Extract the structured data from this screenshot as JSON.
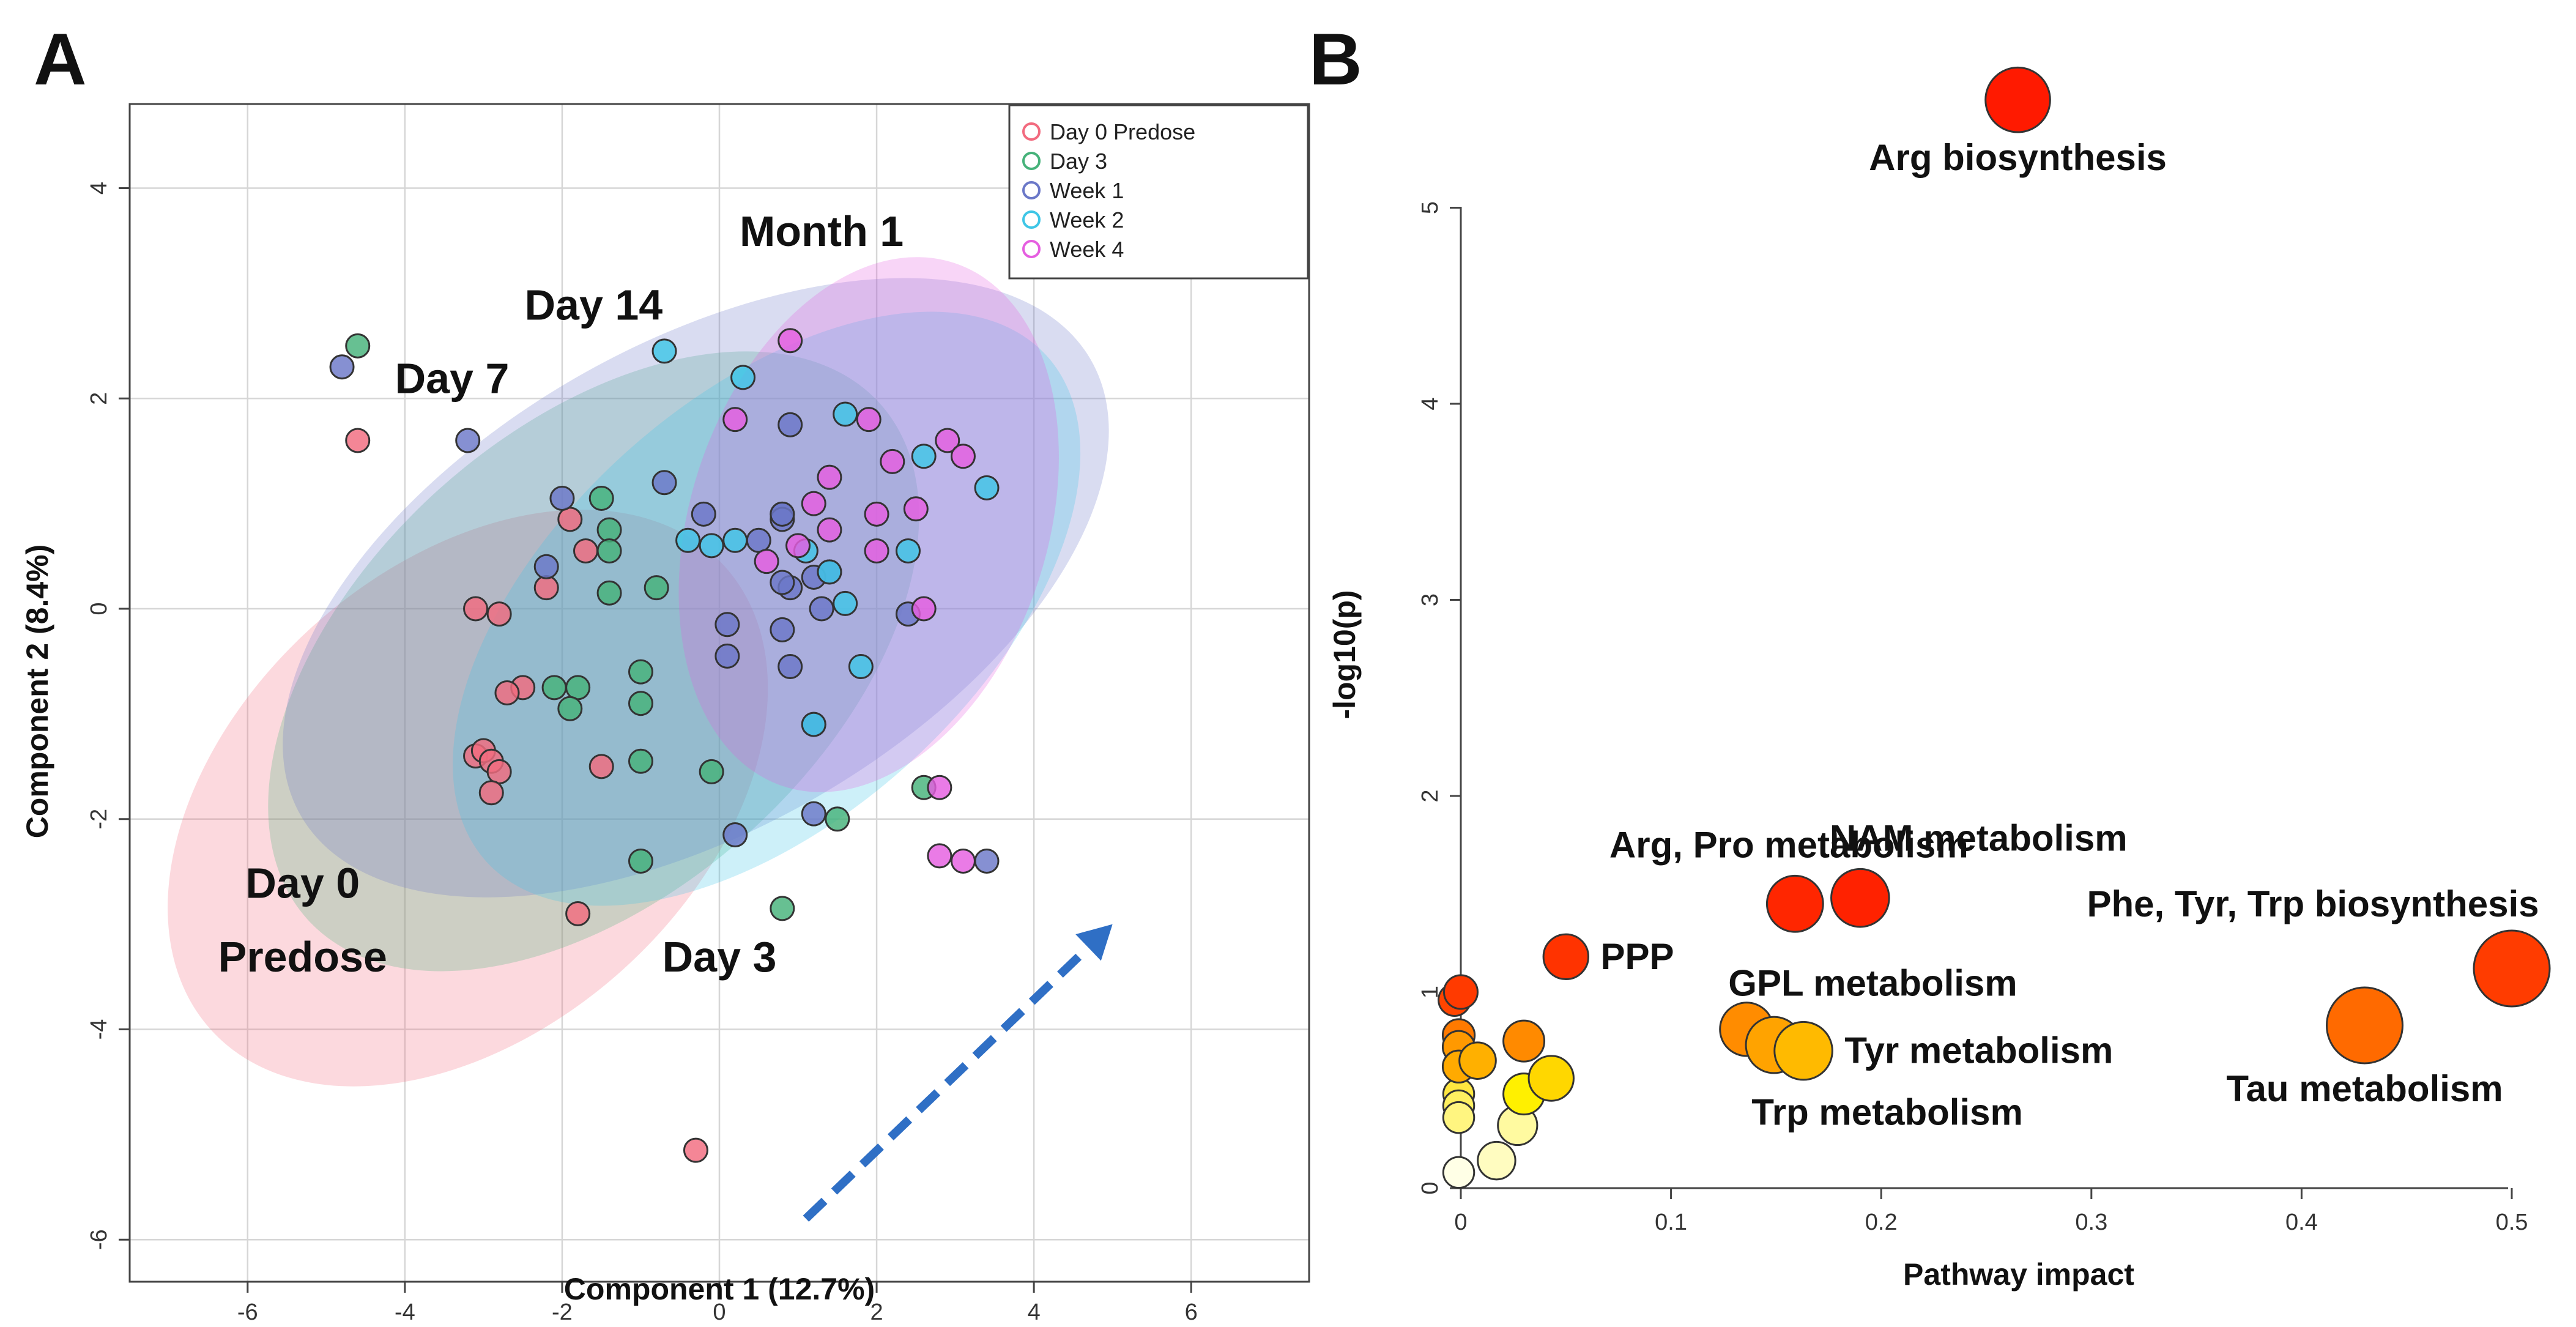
{
  "colors": {
    "day0": "#f26b7f",
    "day3": "#46b27a",
    "week1": "#6b78c8",
    "week2": "#3fc6e6",
    "week4": "#e55ee0",
    "arrow": "#2f6fc5"
  },
  "chart_data": [
    {
      "type": "scatter",
      "panel_letter": "A",
      "title": "",
      "xlabel": "Component 1 (12.7%)",
      "ylabel": "Component 2 (8.4%)",
      "xlim": [
        -7.5,
        7.5
      ],
      "ylim": [
        -6.4,
        4.8
      ],
      "x_ticks": [
        -6,
        -4,
        -2,
        0,
        2,
        4,
        6
      ],
      "y_ticks": [
        -6,
        -4,
        -2,
        0,
        2,
        4
      ],
      "x_tick_labels": [
        "-6",
        "-4",
        "-2",
        "0",
        "2",
        "4",
        "6"
      ],
      "y_tick_labels": [
        "-6",
        "-4",
        "-2",
        "0",
        "2",
        "4"
      ],
      "grid": true,
      "legend_position": "top-right",
      "legend": [
        "Day 0 Predose",
        "Day 3",
        "Week 1",
        "Week 2",
        "Week 4"
      ],
      "group_labels": [
        {
          "text": "Month 1",
          "x": 1.3,
          "y": 3.45
        },
        {
          "text": "Day 14",
          "x": -1.6,
          "y": 2.75
        },
        {
          "text": "Day 7",
          "x": -3.4,
          "y": 2.05
        },
        {
          "text": "Day 0",
          "x": -5.3,
          "y": -2.75
        },
        {
          "text": "Predose",
          "x": -5.3,
          "y": -3.45
        },
        {
          "text": "Day 3",
          "x": 0.0,
          "y": -3.45
        }
      ],
      "arrow": {
        "from": [
          1.1,
          -5.8
        ],
        "to": [
          5.0,
          -3.0
        ]
      },
      "series": [
        {
          "name": "Day 0 Predose",
          "color_key": "day0",
          "ellipse": {
            "cx": -3.2,
            "cy": -1.8,
            "rx": 4.4,
            "ry": 2.2,
            "angle_deg": -42
          },
          "points": [
            [
              -4.6,
              1.6
            ],
            [
              -1.9,
              0.85
            ],
            [
              -1.7,
              0.55
            ],
            [
              -2.2,
              0.2
            ],
            [
              -3.1,
              0.0
            ],
            [
              -2.8,
              -0.05
            ],
            [
              -2.5,
              -0.75
            ],
            [
              -2.7,
              -0.8
            ],
            [
              -3.1,
              -1.4
            ],
            [
              -3.0,
              -1.35
            ],
            [
              -2.9,
              -1.45
            ],
            [
              -2.8,
              -1.55
            ],
            [
              -2.9,
              -1.75
            ],
            [
              -1.5,
              -1.5
            ],
            [
              -1.8,
              -2.9
            ],
            [
              -0.3,
              -5.15
            ]
          ]
        },
        {
          "name": "Day 3",
          "color_key": "day3",
          "ellipse": {
            "cx": -1.6,
            "cy": -0.5,
            "rx": 4.9,
            "ry": 2.2,
            "angle_deg": -42
          },
          "points": [
            [
              -4.6,
              2.5
            ],
            [
              -1.5,
              1.05
            ],
            [
              -1.4,
              0.75
            ],
            [
              -1.4,
              0.55
            ],
            [
              -1.4,
              0.15
            ],
            [
              -0.8,
              0.2
            ],
            [
              -2.1,
              -0.75
            ],
            [
              -1.8,
              -0.75
            ],
            [
              -1.9,
              -0.95
            ],
            [
              -1.0,
              -0.6
            ],
            [
              -1.0,
              -0.9
            ],
            [
              -1.0,
              -1.45
            ],
            [
              -0.1,
              -1.55
            ],
            [
              -1.0,
              -2.4
            ],
            [
              1.5,
              -2.0
            ],
            [
              2.6,
              -1.7
            ],
            [
              0.8,
              -2.85
            ]
          ]
        },
        {
          "name": "Week 1",
          "color_key": "week1",
          "ellipse": {
            "cx": -0.3,
            "cy": 0.2,
            "rx": 5.8,
            "ry": 2.3,
            "angle_deg": -30
          },
          "points": [
            [
              -4.8,
              2.3
            ],
            [
              -3.2,
              1.6
            ],
            [
              -2.0,
              1.05
            ],
            [
              -2.2,
              0.4
            ],
            [
              -0.7,
              1.2
            ],
            [
              -0.2,
              0.9
            ],
            [
              0.5,
              0.65
            ],
            [
              0.8,
              0.9
            ],
            [
              0.8,
              0.85
            ],
            [
              0.9,
              1.75
            ],
            [
              0.9,
              0.2
            ],
            [
              0.8,
              0.25
            ],
            [
              0.8,
              -0.2
            ],
            [
              0.9,
              -0.55
            ],
            [
              0.1,
              -0.15
            ],
            [
              0.1,
              -0.45
            ],
            [
              1.2,
              0.3
            ],
            [
              1.4,
              0.35
            ],
            [
              1.3,
              0.0
            ],
            [
              1.2,
              -1.1
            ],
            [
              1.2,
              -1.95
            ],
            [
              2.4,
              -0.05
            ],
            [
              0.2,
              -2.15
            ],
            [
              3.4,
              -2.4
            ],
            [
              0.8,
              0.9
            ]
          ]
        },
        {
          "name": "Week 2",
          "color_key": "week2",
          "ellipse": {
            "cx": 0.6,
            "cy": 0.0,
            "rx": 4.8,
            "ry": 2.0,
            "angle_deg": -42
          },
          "points": [
            [
              -0.7,
              2.45
            ],
            [
              0.3,
              2.2
            ],
            [
              -0.4,
              0.65
            ],
            [
              -0.1,
              0.6
            ],
            [
              0.2,
              0.65
            ],
            [
              1.1,
              0.55
            ],
            [
              1.4,
              0.35
            ],
            [
              1.6,
              0.05
            ],
            [
              1.6,
              1.85
            ],
            [
              1.8,
              -0.55
            ],
            [
              2.4,
              0.55
            ],
            [
              2.6,
              1.45
            ],
            [
              3.4,
              1.15
            ],
            [
              1.2,
              -1.1
            ]
          ]
        },
        {
          "name": "Week 4",
          "color_key": "week4",
          "ellipse": {
            "cx": 1.9,
            "cy": 0.8,
            "rx": 3.5,
            "ry": 1.7,
            "angle_deg": -72
          },
          "points": [
            [
              0.9,
              2.55
            ],
            [
              0.2,
              1.8
            ],
            [
              1.9,
              1.8
            ],
            [
              2.2,
              1.4
            ],
            [
              2.9,
              1.6
            ],
            [
              3.1,
              1.45
            ],
            [
              2.0,
              0.9
            ],
            [
              2.5,
              0.95
            ],
            [
              1.2,
              1.0
            ],
            [
              1.4,
              1.25
            ],
            [
              1.4,
              0.75
            ],
            [
              1.0,
              0.6
            ],
            [
              0.6,
              0.45
            ],
            [
              2.0,
              0.55
            ],
            [
              2.6,
              0.0
            ],
            [
              2.8,
              -1.7
            ],
            [
              2.8,
              -2.35
            ],
            [
              3.1,
              -2.4
            ]
          ]
        }
      ]
    },
    {
      "type": "scatter",
      "panel_letter": "B",
      "title": "",
      "xlabel": "Pathway impact",
      "ylabel": "-log10(p)",
      "xlim": [
        -0.02,
        0.52
      ],
      "ylim": [
        -0.1,
        5.1
      ],
      "x_ticks": [
        0,
        0.1,
        0.2,
        0.3,
        0.4,
        0.5
      ],
      "y_ticks": [
        0,
        1,
        2,
        3,
        4,
        5
      ],
      "x_tick_labels": [
        "0",
        "0.1",
        "0.2",
        "0.3",
        "0.4",
        "0.5"
      ],
      "y_tick_labels": [
        "0",
        "1",
        "2",
        "3",
        "4",
        "5"
      ],
      "grid": false,
      "bubble_color_scale": "white-yellow-orange-red by -log10(p)",
      "bubbles": [
        {
          "label": "Arg biosynthesis",
          "x": 0.265,
          "y": 5.55,
          "size": 0.8,
          "color": "#ff1a00",
          "label_pos": "below"
        },
        {
          "label": "Arg, Pro metabolism",
          "x": 0.159,
          "y": 1.45,
          "size": 0.65,
          "color": "#ff2600",
          "label_pos": "above-left"
        },
        {
          "label": "NAM metabolism",
          "x": 0.19,
          "y": 1.48,
          "size": 0.68,
          "color": "#ff2200",
          "label_pos": "above-right"
        },
        {
          "label": "PPP",
          "x": 0.05,
          "y": 1.18,
          "size": 0.45,
          "color": "#ff3300",
          "label_pos": "right"
        },
        {
          "label": "Phe, Tyr, Trp biosynthesis",
          "x": 0.5,
          "y": 1.12,
          "size": 1.0,
          "color": "#ff3c00",
          "label_pos": "above-left"
        },
        {
          "label": "Tau metabolism",
          "x": 0.43,
          "y": 0.83,
          "size": 1.0,
          "color": "#ff6a00",
          "label_pos": "below"
        },
        {
          "label": "GPL metabolism",
          "x": 0.136,
          "y": 0.81,
          "size": 0.6,
          "color": "#ff8c00",
          "label_pos": "above-right"
        },
        {
          "label": "",
          "x": 0.149,
          "y": 0.73,
          "size": 0.65,
          "color": "#ffa300"
        },
        {
          "label": "Tyr metabolism",
          "x": 0.163,
          "y": 0.7,
          "size": 0.68,
          "color": "#ffba00",
          "label_pos": "right"
        },
        {
          "label": "Trp metabolism",
          "x": 0.15,
          "y": 0.62,
          "size": 0.0,
          "color": "none",
          "label_pos": "below-right"
        },
        {
          "label": "",
          "x": 0.0,
          "y": 1.0,
          "size": 0.25,
          "color": "#ff3a00"
        },
        {
          "label": "",
          "x": -0.003,
          "y": 0.96,
          "size": 0.22,
          "color": "#ff4500"
        },
        {
          "label": "",
          "x": -0.001,
          "y": 0.78,
          "size": 0.22,
          "color": "#ff7a00"
        },
        {
          "label": "",
          "x": -0.001,
          "y": 0.72,
          "size": 0.22,
          "color": "#ff9900"
        },
        {
          "label": "",
          "x": -0.001,
          "y": 0.62,
          "size": 0.22,
          "color": "#ffaa00"
        },
        {
          "label": "",
          "x": 0.008,
          "y": 0.65,
          "size": 0.3,
          "color": "#ffb000"
        },
        {
          "label": "",
          "x": 0.03,
          "y": 0.75,
          "size": 0.38,
          "color": "#ff8a00"
        },
        {
          "label": "",
          "x": 0.03,
          "y": 0.48,
          "size": 0.38,
          "color": "#fff000"
        },
        {
          "label": "",
          "x": 0.043,
          "y": 0.56,
          "size": 0.45,
          "color": "#ffd700"
        },
        {
          "label": "",
          "x": -0.001,
          "y": 0.48,
          "size": 0.2,
          "color": "#ffe640"
        },
        {
          "label": "",
          "x": -0.001,
          "y": 0.42,
          "size": 0.2,
          "color": "#fff060"
        },
        {
          "label": "",
          "x": -0.001,
          "y": 0.36,
          "size": 0.2,
          "color": "#fff580"
        },
        {
          "label": "",
          "x": 0.027,
          "y": 0.32,
          "size": 0.35,
          "color": "#fffaa0"
        },
        {
          "label": "",
          "x": 0.017,
          "y": 0.14,
          "size": 0.32,
          "color": "#fffcc0"
        },
        {
          "label": "",
          "x": -0.001,
          "y": 0.08,
          "size": 0.2,
          "color": "#ffffe6"
        }
      ]
    }
  ]
}
